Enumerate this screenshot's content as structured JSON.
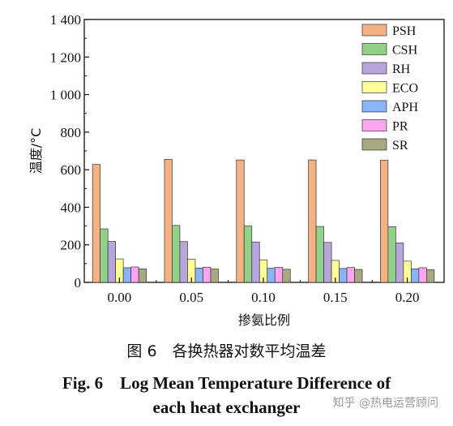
{
  "chart_data": {
    "type": "bar",
    "categories": [
      "0.00",
      "0.05",
      "0.10",
      "0.15",
      "0.20"
    ],
    "xlabel": "掺氨比例",
    "ylabel": "温度/°C",
    "ylim": [
      0,
      1400
    ],
    "yticks": [
      "0",
      "200",
      "400",
      "600",
      "800",
      "1 000",
      "1 200",
      "1 400"
    ],
    "ytick_values": [
      0,
      200,
      400,
      600,
      800,
      1000,
      1200,
      1400
    ],
    "legend_position": "top-right",
    "grid": false,
    "series": [
      {
        "name": "PSH",
        "color": "#f4b183",
        "values": [
          628,
          655,
          652,
          652,
          650
        ]
      },
      {
        "name": "CSH",
        "color": "#93d08a",
        "values": [
          285,
          303,
          300,
          298,
          297
        ]
      },
      {
        "name": "RH",
        "color": "#b7a6dc",
        "values": [
          218,
          217,
          215,
          213,
          210
        ]
      },
      {
        "name": "ECO",
        "color": "#ffff99",
        "values": [
          125,
          123,
          120,
          117,
          113
        ]
      },
      {
        "name": "APH",
        "color": "#8ab4f8",
        "values": [
          78,
          76,
          75,
          74,
          72
        ]
      },
      {
        "name": "PR",
        "color": "#ffa6f3",
        "values": [
          82,
          81,
          80,
          79,
          78
        ]
      },
      {
        "name": "SR",
        "color": "#a8a882",
        "values": [
          72,
          71,
          70,
          69,
          68
        ]
      }
    ]
  },
  "caption": {
    "cn": "图 6　各换热器对数平均温差",
    "en_line1": "Fig. 6　Log Mean Temperature Difference of",
    "en_line2": "each heat exchanger"
  },
  "watermark": "知乎 @热电运营顾问"
}
